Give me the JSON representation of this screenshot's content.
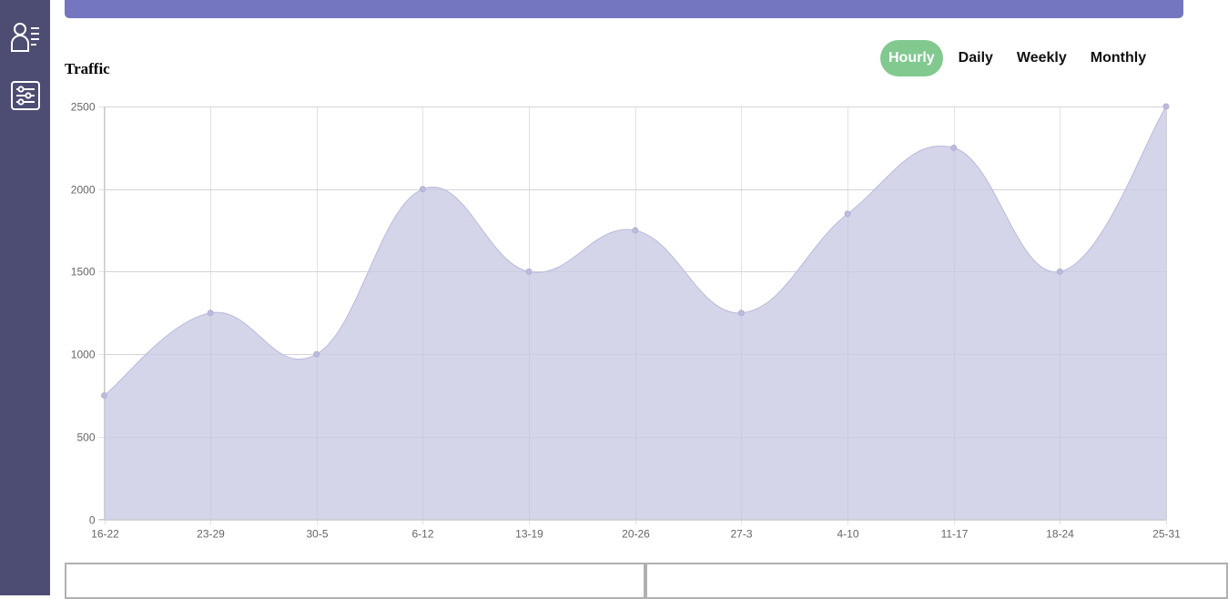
{
  "sidebar": {
    "items": [
      {
        "icon": "members-icon"
      },
      {
        "icon": "settings-sliders-icon"
      }
    ]
  },
  "colors": {
    "sidebar": "#4d4c72",
    "accent": "#7477bf",
    "active_tab": "#81c98f",
    "area_fill": "#d5d5ea",
    "area_line": "#b9b9de"
  },
  "traffic": {
    "title": "Traffic",
    "tabs": [
      {
        "label": "Hourly",
        "active": true
      },
      {
        "label": "Daily",
        "active": false
      },
      {
        "label": "Weekly",
        "active": false
      },
      {
        "label": "Monthly",
        "active": false
      }
    ]
  },
  "chart_data": {
    "type": "area",
    "title": "Traffic",
    "xlabel": "",
    "ylabel": "",
    "categories": [
      "16-22",
      "23-29",
      "30-5",
      "6-12",
      "13-19",
      "20-26",
      "27-3",
      "4-10",
      "11-17",
      "18-24",
      "25-31"
    ],
    "series": [
      {
        "values": [
          750,
          1250,
          1000,
          2000,
          1500,
          1750,
          1250,
          1850,
          2250,
          1500,
          2500
        ]
      }
    ],
    "ylim": [
      0,
      2500
    ],
    "yticks": [
      0,
      500,
      1000,
      1500,
      2000,
      2500
    ],
    "grid": true,
    "legend": "none"
  }
}
